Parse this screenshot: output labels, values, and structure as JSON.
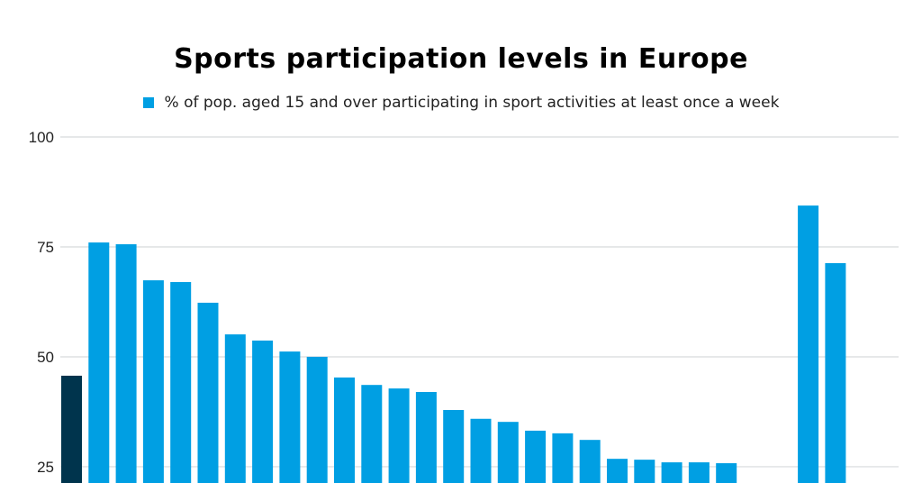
{
  "chart_data": {
    "type": "bar",
    "title": "Sports participation levels in Europe",
    "series": [
      {
        "name": "% of pop. aged 15 and over participating in sport activities at least once a week",
        "color": "#009fe3",
        "highlight_color": "#00344d",
        "highlight_index": 0,
        "values": [
          45.7,
          76.0,
          75.6,
          67.4,
          67.0,
          62.3,
          55.1,
          53.7,
          51.2,
          50.0,
          45.3,
          43.6,
          42.8,
          42.0,
          37.9,
          35.9,
          35.2,
          33.2,
          32.6,
          31.1,
          26.8,
          26.6,
          26.0,
          26.0,
          25.8,
          null,
          null,
          84.4,
          71.3
        ]
      }
    ],
    "yticks": [
      25,
      50,
      75,
      100
    ],
    "ylim": [
      21.3,
      100
    ],
    "grid": true,
    "legend_position": "top",
    "gridline_color": "#d6d9dc"
  }
}
